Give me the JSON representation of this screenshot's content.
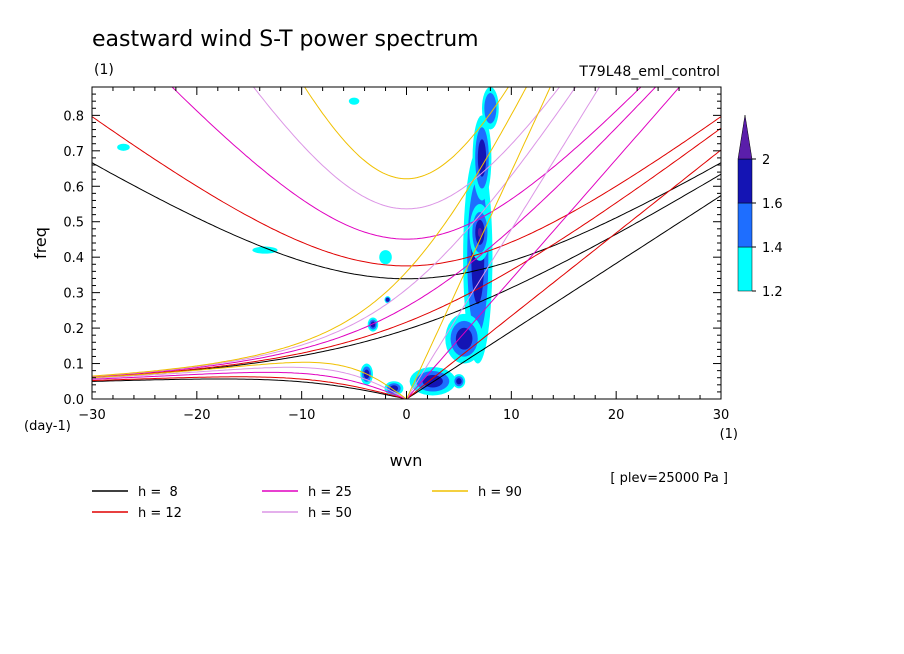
{
  "chart_data": {
    "type": "heatmap",
    "title": "eastward wind S-T power spectrum",
    "unit_label": "(1)",
    "experiment": "T79L48_eml_control",
    "xlabel": "wvn",
    "ylabel": "freq",
    "x_unit": "(1)",
    "y_unit": "(day-1)",
    "level_note": "[ plev=25000 Pa ]",
    "xlim": [
      -30,
      30
    ],
    "ylim": [
      0,
      0.88
    ],
    "x_ticks": [
      -30,
      -20,
      -10,
      0,
      10,
      20,
      30
    ],
    "y_ticks": [
      0.0,
      0.1,
      0.2,
      0.3,
      0.4,
      0.5,
      0.6,
      0.7,
      0.8
    ],
    "colorbar": {
      "levels": [
        1.2,
        1.4,
        1.6,
        2
      ],
      "colors": [
        "#00ffff",
        "#1e6eff",
        "#1414b4",
        "#5a1eaa"
      ]
    },
    "dispersion_curves": [
      {
        "label": "h =  8",
        "h": 8,
        "color": "#000000"
      },
      {
        "label": "h = 12",
        "h": 12,
        "color": "#e00000"
      },
      {
        "label": "h = 25",
        "h": 25,
        "color": "#e000c0"
      },
      {
        "label": "h = 50",
        "h": 50,
        "color": "#dc96e6"
      },
      {
        "label": "h = 90",
        "h": 90,
        "color": "#f0c000"
      }
    ],
    "power_blobs": [
      {
        "x": 6.8,
        "y": 0.4,
        "sx": 1.4,
        "sy": 0.3,
        "level": 1.6
      },
      {
        "x": 7.2,
        "y": 0.68,
        "sx": 0.9,
        "sy": 0.12,
        "level": 1.8
      },
      {
        "x": 7.0,
        "y": 0.47,
        "sx": 1.0,
        "sy": 0.08,
        "level": 2
      },
      {
        "x": 5.5,
        "y": 0.17,
        "sx": 1.8,
        "sy": 0.07,
        "level": 1.8
      },
      {
        "x": 2.5,
        "y": 0.05,
        "sx": 2.2,
        "sy": 0.04,
        "level": 1.8
      },
      {
        "x": 8.0,
        "y": 0.82,
        "sx": 0.8,
        "sy": 0.06,
        "level": 1.4
      },
      {
        "x": -3.8,
        "y": 0.07,
        "sx": 0.6,
        "sy": 0.03,
        "level": 1.6
      },
      {
        "x": -3.2,
        "y": 0.21,
        "sx": 0.5,
        "sy": 0.02,
        "level": 1.6
      },
      {
        "x": -1.2,
        "y": 0.03,
        "sx": 0.9,
        "sy": 0.02,
        "level": 1.6
      },
      {
        "x": 5.0,
        "y": 0.05,
        "sx": 0.6,
        "sy": 0.02,
        "level": 1.6
      },
      {
        "x": -1.8,
        "y": 0.28,
        "sx": 0.3,
        "sy": 0.01,
        "level": 1.6
      },
      {
        "x": -13.5,
        "y": 0.42,
        "sx": 1.2,
        "sy": 0.01,
        "level": 1.2
      },
      {
        "x": -5.0,
        "y": 0.84,
        "sx": 0.5,
        "sy": 0.01,
        "level": 1.2
      },
      {
        "x": -27.0,
        "y": 0.71,
        "sx": 0.6,
        "sy": 0.01,
        "level": 1.2
      },
      {
        "x": -2.0,
        "y": 0.4,
        "sx": 0.6,
        "sy": 0.02,
        "level": 1.2
      }
    ]
  }
}
